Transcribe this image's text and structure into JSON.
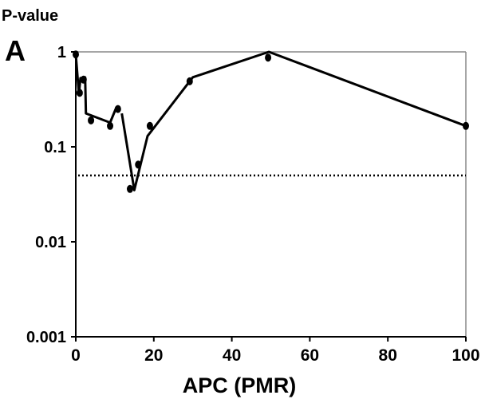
{
  "chart_data": {
    "type": "scatter",
    "panel_label": "A",
    "y_label": "P-value",
    "x_label": "APC (PMR)",
    "xlim": [
      0,
      100
    ],
    "xticks": [
      0,
      20,
      40,
      60,
      80,
      100
    ],
    "ylim": [
      0.001,
      1
    ],
    "yticks": [
      0.001,
      0.01,
      0.1,
      1
    ],
    "ylog": true,
    "reference_line": 0.05,
    "series": [
      {
        "mode": "markers",
        "color": "#000000",
        "x": [
          0,
          1,
          2,
          3.9,
          8.8,
          10.8,
          13.9,
          16,
          19,
          29.2,
          49.3,
          100
        ],
        "values": [
          0.94,
          0.37,
          0.51,
          0.19,
          0.166,
          0.25,
          0.036,
          0.065,
          0.166,
          0.49,
          0.87,
          0.166
        ]
      },
      {
        "mode": "line",
        "color": "#000000",
        "x": [
          0,
          0.8,
          1.2,
          2.4,
          2.6,
          8.8,
          10.4,
          null,
          11.8,
          15,
          18.4,
          30,
          49.5,
          100
        ],
        "values": [
          0.94,
          0.36,
          0.53,
          0.54,
          0.225,
          0.18,
          0.26,
          null,
          0.225,
          0.035,
          0.13,
          0.54,
          1.0,
          0.166
        ]
      }
    ]
  }
}
